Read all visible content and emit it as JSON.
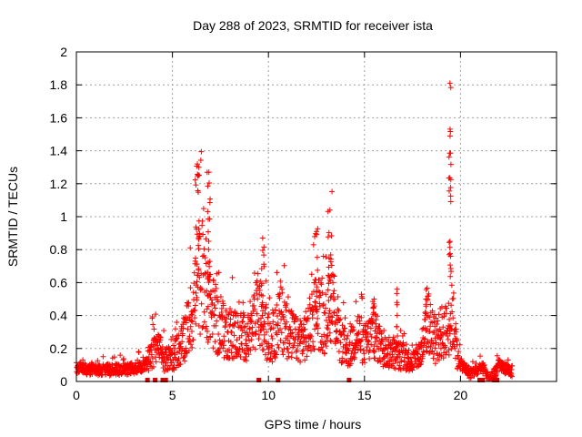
{
  "chart_data": {
    "type": "scatter",
    "title": "Day 288 of 2023, SRMTID for receiver ista",
    "xlabel": "GPS time / hours",
    "ylabel": "SRMTID / TECUs",
    "xlim": [
      0,
      25
    ],
    "ylim": [
      0,
      2
    ],
    "xticks": [
      0,
      5,
      10,
      15,
      20
    ],
    "xtick_labels": [
      "0",
      "5",
      "10",
      "15",
      "20"
    ],
    "yticks": [
      0,
      0.2,
      0.4,
      0.6,
      0.8,
      1,
      1.2,
      1.4,
      1.6,
      1.8,
      2
    ],
    "ytick_labels": [
      "0",
      "0.2",
      "0.4",
      "0.6",
      "0.8",
      "1",
      "1.2",
      "1.4",
      "1.6",
      "1.8",
      "2"
    ],
    "grid": true,
    "marker": "+",
    "marker_color": "#ff0000",
    "gap_marker": "square",
    "gap_marker_color": "#e00000",
    "gap_times": [
      3.7,
      4.1,
      4.5,
      4.65,
      9.5,
      10.5,
      14.2,
      21.0,
      21.15,
      21.75,
      21.9
    ],
    "profile": {
      "description": "trend of dense noisy series: [hour, typical value]",
      "points": [
        [
          0.0,
          0.08
        ],
        [
          1.0,
          0.07
        ],
        [
          2.0,
          0.07
        ],
        [
          3.0,
          0.08
        ],
        [
          3.6,
          0.1
        ],
        [
          4.0,
          0.19
        ],
        [
          4.3,
          0.19
        ],
        [
          4.6,
          0.13
        ],
        [
          5.0,
          0.14
        ],
        [
          5.5,
          0.22
        ],
        [
          6.0,
          0.4
        ],
        [
          6.3,
          0.6
        ],
        [
          6.6,
          0.65
        ],
        [
          7.0,
          0.45
        ],
        [
          7.5,
          0.3
        ],
        [
          8.0,
          0.3
        ],
        [
          8.5,
          0.28
        ],
        [
          9.0,
          0.26
        ],
        [
          9.5,
          0.45
        ],
        [
          9.8,
          0.3
        ],
        [
          10.2,
          0.25
        ],
        [
          10.6,
          0.4
        ],
        [
          11.0,
          0.3
        ],
        [
          11.5,
          0.25
        ],
        [
          12.0,
          0.28
        ],
        [
          12.5,
          0.45
        ],
        [
          13.0,
          0.35
        ],
        [
          13.3,
          0.55
        ],
        [
          13.7,
          0.25
        ],
        [
          14.2,
          0.18
        ],
        [
          14.6,
          0.3
        ],
        [
          15.0,
          0.22
        ],
        [
          15.5,
          0.3
        ],
        [
          16.0,
          0.18
        ],
        [
          16.5,
          0.17
        ],
        [
          17.0,
          0.15
        ],
        [
          17.5,
          0.12
        ],
        [
          18.0,
          0.18
        ],
        [
          18.3,
          0.4
        ],
        [
          18.6,
          0.2
        ],
        [
          19.0,
          0.3
        ],
        [
          19.3,
          0.3
        ],
        [
          19.6,
          0.4
        ],
        [
          19.9,
          0.12
        ],
        [
          20.5,
          0.05
        ],
        [
          21.2,
          0.08
        ],
        [
          21.5,
          0.0
        ],
        [
          22.0,
          0.1
        ],
        [
          22.7,
          0.06
        ]
      ]
    },
    "peaks": [
      {
        "x": 6.3,
        "y": 1.32,
        "width": 0.25
      },
      {
        "x": 6.9,
        "y": 1.27,
        "width": 0.2
      },
      {
        "x": 9.7,
        "y": 0.87,
        "width": 0.15
      },
      {
        "x": 12.5,
        "y": 0.91,
        "width": 0.2
      },
      {
        "x": 13.2,
        "y": 1.04,
        "width": 0.2
      },
      {
        "x": 15.5,
        "y": 0.5,
        "width": 0.15
      },
      {
        "x": 16.7,
        "y": 0.56,
        "width": 0.05
      },
      {
        "x": 18.2,
        "y": 0.5,
        "width": 0.2
      },
      {
        "x": 19.45,
        "y": 1.81,
        "width": 0.12
      }
    ]
  }
}
